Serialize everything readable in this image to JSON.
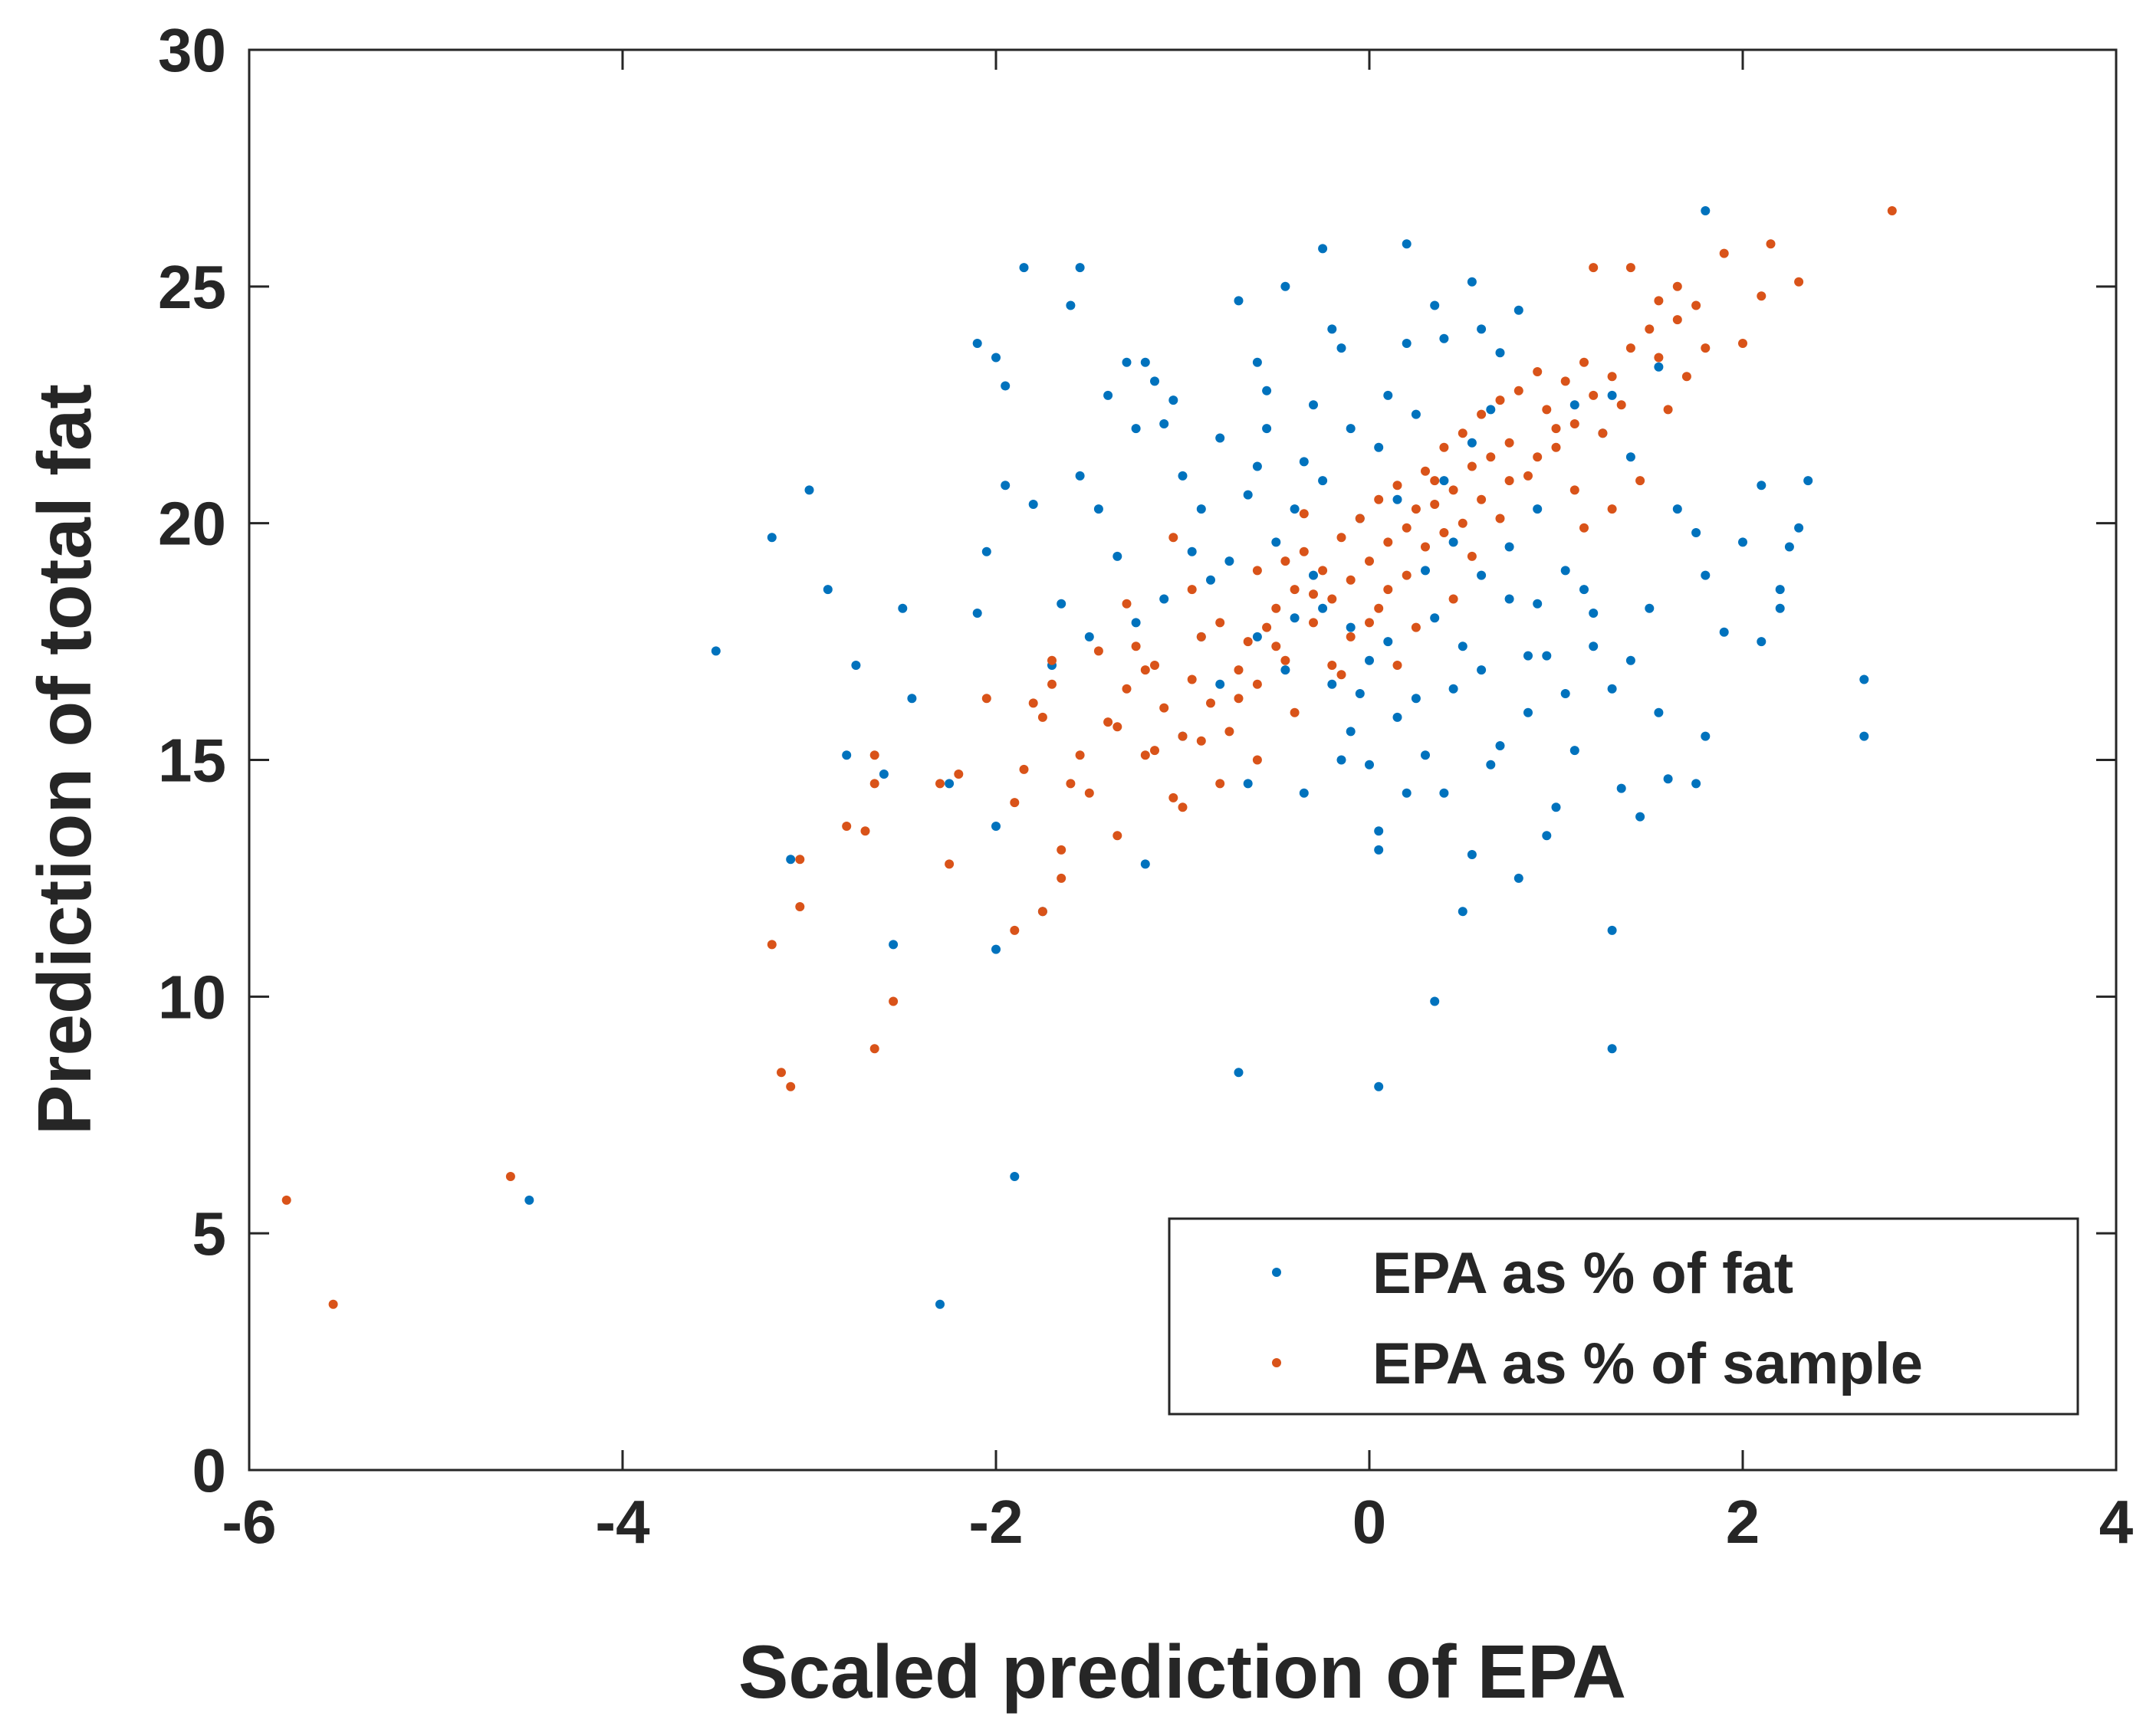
{
  "chart_data": {
    "type": "scatter",
    "title": "",
    "xlabel": "Scaled prediction of EPA",
    "ylabel": "Prediction of total fat",
    "xlim": [
      -6,
      4
    ],
    "ylim": [
      0,
      30
    ],
    "xticks": [
      -6,
      -4,
      -2,
      0,
      2,
      4
    ],
    "yticks": [
      0,
      5,
      10,
      15,
      20,
      25,
      30
    ],
    "xtick_labels": [
      "-6",
      "-4",
      "-2",
      "0",
      "2",
      "4"
    ],
    "ytick_labels": [
      "0",
      "5",
      "10",
      "15",
      "20",
      "25",
      "30"
    ],
    "grid": false,
    "legend_position": "bottom-right",
    "series": [
      {
        "name": "EPA as % of fat",
        "color": "#0072BD",
        "points": [
          [
            -4.5,
            5.7
          ],
          [
            -2.3,
            3.5
          ],
          [
            -1.9,
            6.2
          ],
          [
            -0.7,
            8.4
          ],
          [
            0.05,
            8.1
          ],
          [
            1.3,
            8.9
          ],
          [
            0.35,
            9.9
          ],
          [
            -3.5,
            17.3
          ],
          [
            -3.2,
            19.7
          ],
          [
            -3.0,
            20.7
          ],
          [
            -2.9,
            18.6
          ],
          [
            -3.1,
            12.9
          ],
          [
            -2.8,
            15.1
          ],
          [
            -2.75,
            17.0
          ],
          [
            -2.6,
            14.7
          ],
          [
            -2.55,
            11.1
          ],
          [
            -2.5,
            18.2
          ],
          [
            -2.45,
            16.3
          ],
          [
            -2.25,
            14.5
          ],
          [
            -2.1,
            23.8
          ],
          [
            -2.0,
            23.5
          ],
          [
            -1.95,
            22.9
          ],
          [
            -1.85,
            25.4
          ],
          [
            -1.55,
            25.4
          ],
          [
            -1.6,
            24.6
          ],
          [
            -2.05,
            19.4
          ],
          [
            -2.1,
            18.1
          ],
          [
            -1.95,
            20.8
          ],
          [
            -1.8,
            20.4
          ],
          [
            -1.7,
            17.0
          ],
          [
            -2.0,
            13.6
          ],
          [
            -2.0,
            11.0
          ],
          [
            -1.75,
            11.8
          ],
          [
            -1.65,
            18.3
          ],
          [
            -1.5,
            17.6
          ],
          [
            -1.4,
            22.7
          ],
          [
            -1.3,
            23.4
          ],
          [
            -1.2,
            23.4
          ],
          [
            -1.15,
            23.0
          ],
          [
            -1.25,
            22.0
          ],
          [
            -1.1,
            22.1
          ],
          [
            -1.0,
            21.0
          ],
          [
            -0.9,
            20.3
          ],
          [
            -0.95,
            19.4
          ],
          [
            -1.2,
            12.8
          ],
          [
            -1.0,
            15.5
          ],
          [
            -0.7,
            24.7
          ],
          [
            -0.6,
            23.4
          ],
          [
            -0.55,
            22.8
          ],
          [
            -0.45,
            25.0
          ],
          [
            -0.25,
            25.8
          ],
          [
            -0.2,
            24.1
          ],
          [
            -0.15,
            23.7
          ],
          [
            -0.3,
            22.5
          ],
          [
            -0.1,
            22.0
          ],
          [
            -0.35,
            21.3
          ],
          [
            -0.4,
            20.3
          ],
          [
            -0.5,
            19.6
          ],
          [
            -0.65,
            20.6
          ],
          [
            -0.8,
            21.8
          ],
          [
            -0.75,
            19.2
          ],
          [
            -0.6,
            17.6
          ],
          [
            -0.45,
            16.9
          ],
          [
            -0.35,
            14.3
          ],
          [
            -0.65,
            14.5
          ],
          [
            -0.3,
            18.9
          ],
          [
            -0.2,
            16.6
          ],
          [
            -0.1,
            17.8
          ],
          [
            0.0,
            17.1
          ],
          [
            -0.05,
            20.1
          ],
          [
            0.05,
            21.6
          ],
          [
            0.1,
            22.7
          ],
          [
            0.2,
            25.9
          ],
          [
            0.2,
            23.8
          ],
          [
            0.35,
            24.6
          ],
          [
            0.4,
            23.9
          ],
          [
            0.55,
            25.1
          ],
          [
            0.6,
            24.1
          ],
          [
            0.7,
            23.6
          ],
          [
            0.8,
            24.5
          ],
          [
            0.25,
            22.3
          ],
          [
            0.15,
            20.5
          ],
          [
            0.05,
            13.5
          ],
          [
            0.05,
            13.1
          ],
          [
            0.2,
            14.3
          ],
          [
            0.4,
            14.3
          ],
          [
            0.55,
            13.0
          ],
          [
            0.5,
            11.8
          ],
          [
            0.8,
            12.5
          ],
          [
            0.95,
            13.4
          ],
          [
            1.0,
            14.0
          ],
          [
            1.3,
            11.4
          ],
          [
            1.35,
            14.4
          ],
          [
            1.45,
            13.8
          ],
          [
            1.6,
            14.6
          ],
          [
            1.75,
            14.5
          ],
          [
            1.8,
            15.5
          ],
          [
            1.4,
            21.4
          ],
          [
            1.3,
            22.7
          ],
          [
            1.55,
            23.3
          ],
          [
            1.8,
            26.6
          ],
          [
            1.65,
            20.3
          ],
          [
            1.75,
            19.8
          ],
          [
            1.8,
            18.9
          ],
          [
            1.9,
            17.7
          ],
          [
            2.0,
            19.6
          ],
          [
            2.1,
            17.5
          ],
          [
            2.1,
            20.8
          ],
          [
            2.2,
            18.2
          ],
          [
            2.2,
            18.6
          ],
          [
            2.25,
            19.5
          ],
          [
            2.3,
            19.9
          ],
          [
            2.35,
            20.9
          ],
          [
            2.65,
            15.5
          ],
          [
            2.65,
            16.7
          ],
          [
            1.5,
            18.2
          ],
          [
            1.55,
            16.0
          ],
          [
            1.4,
            17.1
          ],
          [
            1.3,
            16.5
          ],
          [
            1.2,
            17.4
          ],
          [
            1.1,
            15.2
          ],
          [
            1.05,
            16.4
          ],
          [
            0.95,
            17.2
          ],
          [
            0.9,
            18.3
          ],
          [
            0.85,
            16.0
          ],
          [
            0.7,
            15.3
          ],
          [
            0.6,
            16.9
          ],
          [
            0.5,
            17.4
          ],
          [
            0.45,
            16.5
          ],
          [
            0.35,
            18.0
          ],
          [
            0.25,
            16.3
          ],
          [
            0.15,
            15.9
          ],
          [
            0.1,
            17.5
          ],
          [
            -0.05,
            16.4
          ],
          [
            -0.15,
            15.0
          ],
          [
            -0.25,
            18.2
          ],
          [
            0.3,
            19.0
          ],
          [
            0.45,
            19.6
          ],
          [
            0.6,
            18.9
          ],
          [
            0.75,
            19.5
          ],
          [
            0.9,
            20.3
          ],
          [
            1.05,
            19.0
          ],
          [
            1.15,
            18.6
          ],
          [
            -0.85,
            18.8
          ],
          [
            -0.9,
            17.6
          ],
          [
            -1.1,
            18.4
          ],
          [
            -1.25,
            17.9
          ],
          [
            -1.35,
            19.3
          ],
          [
            -1.45,
            20.3
          ],
          [
            -1.55,
            21.0
          ],
          [
            -0.55,
            22.0
          ],
          [
            -0.25,
            20.9
          ],
          [
            0.55,
            21.7
          ],
          [
            0.65,
            22.4
          ],
          [
            1.1,
            22.5
          ],
          [
            1.25,
            21.9
          ],
          [
            0.85,
            17.2
          ],
          [
            0.65,
            14.9
          ],
          [
            0.3,
            15.1
          ],
          [
            0.0,
            14.9
          ],
          [
            -0.1,
            15.6
          ],
          [
            0.75,
            18.4
          ],
          [
            1.2,
            18.1
          ],
          [
            -0.8,
            16.6
          ],
          [
            -0.4,
            18.0
          ],
          [
            0.4,
            20.9
          ],
          [
            -0.6,
            21.2
          ],
          [
            -1.05,
            22.6
          ]
        ]
      },
      {
        "name": "EPA as % of sample",
        "color": "#D95319",
        "points": [
          [
            -5.8,
            5.7
          ],
          [
            -5.55,
            3.5
          ],
          [
            -4.6,
            6.2
          ],
          [
            -3.2,
            11.1
          ],
          [
            -3.15,
            8.4
          ],
          [
            -3.1,
            8.1
          ],
          [
            -3.05,
            11.9
          ],
          [
            -3.05,
            12.9
          ],
          [
            -2.8,
            13.6
          ],
          [
            -2.7,
            13.5
          ],
          [
            -2.65,
            15.1
          ],
          [
            -2.65,
            14.5
          ],
          [
            -2.65,
            8.9
          ],
          [
            -2.55,
            9.9
          ],
          [
            -2.3,
            14.5
          ],
          [
            -2.25,
            12.8
          ],
          [
            -2.2,
            14.7
          ],
          [
            -2.05,
            16.3
          ],
          [
            -1.9,
            11.4
          ],
          [
            -1.9,
            14.1
          ],
          [
            -1.85,
            14.8
          ],
          [
            -1.8,
            16.2
          ],
          [
            -1.75,
            15.9
          ],
          [
            -1.7,
            16.6
          ],
          [
            -1.75,
            11.8
          ],
          [
            -1.65,
            12.5
          ],
          [
            -1.65,
            13.1
          ],
          [
            -1.6,
            14.5
          ],
          [
            -1.55,
            15.1
          ],
          [
            -1.5,
            14.3
          ],
          [
            -1.4,
            15.8
          ],
          [
            -1.35,
            15.7
          ],
          [
            -1.35,
            13.4
          ],
          [
            -1.3,
            16.5
          ],
          [
            -1.25,
            17.4
          ],
          [
            -1.2,
            16.9
          ],
          [
            -1.15,
            15.2
          ],
          [
            -1.1,
            16.1
          ],
          [
            -1.05,
            14.2
          ],
          [
            -1.0,
            14.0
          ],
          [
            -1.0,
            15.5
          ],
          [
            -0.95,
            16.7
          ],
          [
            -0.9,
            17.6
          ],
          [
            -0.85,
            16.2
          ],
          [
            -0.8,
            14.5
          ],
          [
            -0.75,
            15.6
          ],
          [
            -0.7,
            16.9
          ],
          [
            -0.65,
            17.5
          ],
          [
            -0.6,
            16.6
          ],
          [
            -0.55,
            17.8
          ],
          [
            -0.5,
            18.2
          ],
          [
            -0.45,
            17.1
          ],
          [
            -0.4,
            18.6
          ],
          [
            -0.35,
            19.4
          ],
          [
            -0.3,
            17.9
          ],
          [
            -0.25,
            19.0
          ],
          [
            -0.2,
            18.4
          ],
          [
            -0.15,
            19.7
          ],
          [
            -0.1,
            18.8
          ],
          [
            -0.05,
            20.1
          ],
          [
            0.0,
            19.2
          ],
          [
            0.05,
            20.5
          ],
          [
            0.1,
            19.6
          ],
          [
            0.15,
            20.8
          ],
          [
            0.2,
            19.9
          ],
          [
            0.25,
            20.3
          ],
          [
            0.3,
            21.1
          ],
          [
            0.35,
            20.4
          ],
          [
            0.4,
            21.6
          ],
          [
            0.45,
            20.7
          ],
          [
            0.5,
            21.9
          ],
          [
            0.55,
            21.2
          ],
          [
            0.6,
            22.3
          ],
          [
            0.65,
            21.4
          ],
          [
            0.7,
            22.6
          ],
          [
            0.75,
            21.7
          ],
          [
            0.8,
            22.8
          ],
          [
            0.85,
            21.0
          ],
          [
            0.9,
            23.2
          ],
          [
            0.95,
            22.4
          ],
          [
            1.0,
            21.6
          ],
          [
            1.05,
            23.0
          ],
          [
            1.1,
            22.1
          ],
          [
            1.15,
            23.4
          ],
          [
            1.2,
            22.7
          ],
          [
            1.25,
            21.9
          ],
          [
            1.3,
            23.1
          ],
          [
            1.35,
            22.5
          ],
          [
            1.4,
            23.7
          ],
          [
            1.45,
            20.9
          ],
          [
            1.5,
            24.1
          ],
          [
            1.55,
            23.5
          ],
          [
            1.6,
            22.4
          ],
          [
            1.65,
            24.3
          ],
          [
            1.7,
            23.1
          ],
          [
            1.75,
            24.6
          ],
          [
            1.8,
            23.7
          ],
          [
            1.9,
            25.7
          ],
          [
            2.0,
            23.8
          ],
          [
            2.1,
            24.8
          ],
          [
            2.15,
            25.9
          ],
          [
            2.3,
            25.1
          ],
          [
            2.8,
            26.6
          ],
          [
            1.2,
            25.4
          ],
          [
            1.4,
            25.4
          ],
          [
            1.65,
            25.0
          ],
          [
            1.55,
            24.7
          ],
          [
            -0.2,
            17.0
          ],
          [
            0.0,
            17.9
          ],
          [
            0.2,
            18.9
          ],
          [
            0.4,
            19.8
          ],
          [
            0.6,
            20.5
          ],
          [
            -0.6,
            15.0
          ],
          [
            -0.4,
            16.0
          ],
          [
            0.3,
            19.5
          ],
          [
            0.1,
            18.6
          ],
          [
            -0.1,
            17.6
          ],
          [
            -0.8,
            17.9
          ],
          [
            -1.05,
            19.7
          ],
          [
            -1.3,
            18.3
          ],
          [
            -1.45,
            17.3
          ],
          [
            -1.15,
            17.0
          ],
          [
            -0.95,
            18.6
          ],
          [
            0.5,
            20.0
          ],
          [
            0.7,
            20.1
          ],
          [
            0.9,
            21.4
          ],
          [
            1.1,
            20.7
          ],
          [
            1.3,
            20.3
          ],
          [
            -0.3,
            18.5
          ],
          [
            -0.5,
            17.4
          ],
          [
            0.05,
            18.2
          ],
          [
            0.25,
            17.8
          ],
          [
            -0.7,
            16.3
          ],
          [
            -0.9,
            15.4
          ],
          [
            -1.2,
            15.1
          ],
          [
            -0.45,
            19.2
          ],
          [
            0.35,
            20.9
          ],
          [
            0.55,
            19.3
          ],
          [
            0.75,
            20.9
          ],
          [
            1.0,
            22.0
          ],
          [
            -0.15,
            16.8
          ],
          [
            -0.6,
            19.0
          ],
          [
            0.45,
            18.4
          ],
          [
            0.15,
            17.0
          ],
          [
            -0.35,
            20.2
          ],
          [
            1.15,
            19.9
          ],
          [
            -1.7,
            17.1
          ]
        ]
      }
    ]
  }
}
